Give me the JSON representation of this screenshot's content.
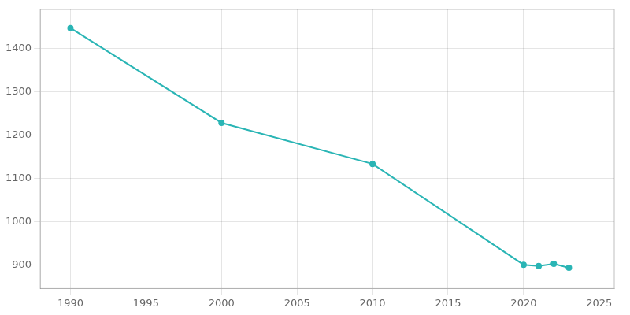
{
  "chart_data": {
    "type": "line",
    "x": [
      1990,
      2000,
      2010,
      2020,
      2021,
      2022,
      2023
    ],
    "values": [
      1447,
      1228,
      1133,
      900,
      897,
      902,
      893
    ],
    "color": "#2ab5b5",
    "marker": "circle",
    "xlim": [
      1988,
      2026
    ],
    "ylim": [
      845,
      1490
    ],
    "xticks": [
      1990,
      1995,
      2000,
      2005,
      2010,
      2015,
      2020,
      2025
    ],
    "yticks": [
      900,
      1000,
      1100,
      1200,
      1300,
      1400
    ],
    "grid": true
  }
}
